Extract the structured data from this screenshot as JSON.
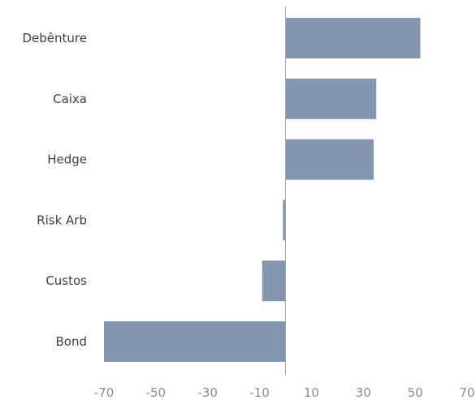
{
  "chart_data": {
    "type": "bar",
    "orientation": "horizontal",
    "categories": [
      "Debênture",
      "Caixa",
      "Hedge",
      "Risk Arb",
      "Custos",
      "Bond"
    ],
    "values": [
      52,
      35,
      34,
      -1,
      -9,
      -70
    ],
    "xlim": [
      -70,
      70
    ],
    "xticks": [
      "-70",
      "-50",
      "-30",
      "-10",
      "10",
      "30",
      "50",
      "70"
    ],
    "bar_color": "#8497b0",
    "axis_color": "#a6a6a6",
    "grid": false,
    "legend": "none"
  }
}
